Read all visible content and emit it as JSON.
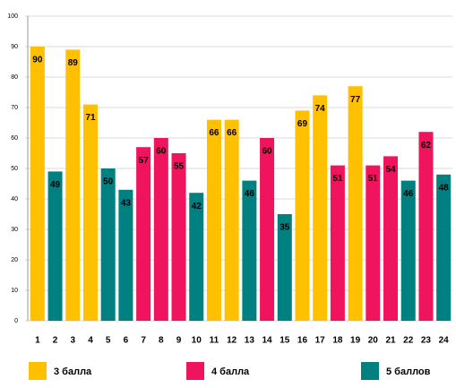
{
  "chart_data": {
    "type": "bar",
    "categories": [
      "1",
      "2",
      "3",
      "4",
      "5",
      "6",
      "7",
      "8",
      "9",
      "10",
      "11",
      "12",
      "13",
      "14",
      "15",
      "16",
      "17",
      "18",
      "19",
      "20",
      "21",
      "22",
      "23",
      "24"
    ],
    "series": [
      {
        "name": "3 балла",
        "color": "#FFC000",
        "values": [
          90,
          null,
          89,
          71,
          null,
          null,
          null,
          null,
          null,
          null,
          66,
          66,
          null,
          null,
          null,
          69,
          74,
          null,
          77,
          null,
          null,
          null,
          null,
          null
        ]
      },
      {
        "name": "4 балла",
        "color": "#F0145F",
        "values": [
          null,
          null,
          null,
          null,
          null,
          null,
          57,
          60,
          55,
          null,
          null,
          null,
          null,
          60,
          null,
          null,
          null,
          51,
          null,
          51,
          54,
          null,
          62,
          null
        ]
      },
      {
        "name": "5 баллов",
        "color": "#008080",
        "values": [
          null,
          49,
          null,
          null,
          50,
          43,
          null,
          null,
          null,
          42,
          null,
          null,
          46,
          null,
          35,
          null,
          null,
          null,
          null,
          null,
          null,
          46,
          null,
          48
        ]
      }
    ],
    "ylim": [
      0,
      100
    ],
    "yticks": [
      0,
      10,
      20,
      30,
      40,
      50,
      60,
      70,
      80,
      90,
      100
    ],
    "grid": true
  }
}
